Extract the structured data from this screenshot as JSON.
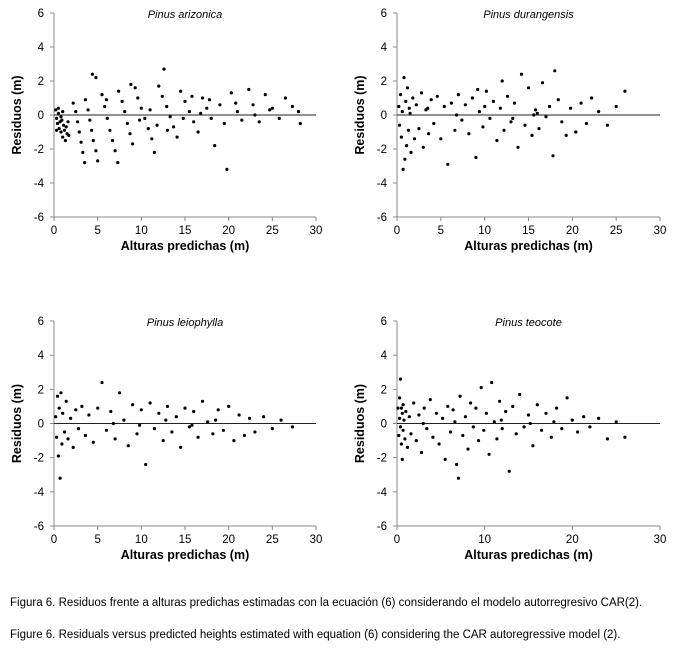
{
  "chart_data": [
    {
      "type": "scatter",
      "title": "Pinus arizonica",
      "xlabel": "Alturas predichas (m)",
      "ylabel": "Residuos (m)",
      "xlim": [
        0,
        30
      ],
      "ylim": [
        -6,
        6
      ],
      "xticks": [
        "0",
        "5",
        "10",
        "15",
        "20",
        "25",
        "30"
      ],
      "yticks": [
        "6",
        "4",
        "2",
        "0",
        "-2",
        "-4",
        "-6"
      ],
      "reference_line_y": 0,
      "grid": false,
      "points": [
        [
          0.2,
          0.3
        ],
        [
          0.3,
          -0.2
        ],
        [
          0.4,
          -0.5
        ],
        [
          0.5,
          0.1
        ],
        [
          0.6,
          -0.8
        ],
        [
          0.7,
          -0.4
        ],
        [
          0.8,
          -1.0
        ],
        [
          0.9,
          -0.3
        ],
        [
          1.0,
          -1.3
        ],
        [
          1.1,
          -0.6
        ],
        [
          1.2,
          -0.9
        ],
        [
          1.3,
          -1.5
        ],
        [
          1.4,
          -0.7
        ],
        [
          1.5,
          -1.1
        ],
        [
          1.6,
          -0.4
        ],
        [
          1.7,
          -1.2
        ],
        [
          0.5,
          0.4
        ],
        [
          0.3,
          -0.9
        ],
        [
          1.0,
          0.2
        ],
        [
          0.8,
          -0.1
        ],
        [
          2.2,
          0.7
        ],
        [
          2.5,
          0.2
        ],
        [
          2.7,
          -0.4
        ],
        [
          2.9,
          -1.0
        ],
        [
          3.1,
          -1.6
        ],
        [
          3.3,
          -2.2
        ],
        [
          3.5,
          -2.8
        ],
        [
          3.6,
          0.9
        ],
        [
          3.9,
          0.3
        ],
        [
          4.1,
          -0.3
        ],
        [
          4.3,
          -0.9
        ],
        [
          4.5,
          -1.5
        ],
        [
          4.8,
          -2.1
        ],
        [
          5.0,
          -2.7
        ],
        [
          4.4,
          2.4
        ],
        [
          4.8,
          2.2
        ],
        [
          5.5,
          1.2
        ],
        [
          5.8,
          0.5
        ],
        [
          6.1,
          -0.2
        ],
        [
          6.4,
          -0.9
        ],
        [
          6.7,
          -1.5
        ],
        [
          7.0,
          -2.1
        ],
        [
          7.3,
          -2.8
        ],
        [
          7.4,
          1.4
        ],
        [
          7.8,
          0.8
        ],
        [
          8.1,
          0.2
        ],
        [
          8.4,
          -0.5
        ],
        [
          8.7,
          -1.1
        ],
        [
          9.0,
          -1.7
        ],
        [
          8.8,
          1.8
        ],
        [
          9.3,
          1.6
        ],
        [
          9.6,
          1.0
        ],
        [
          10.0,
          0.4
        ],
        [
          10.4,
          -0.2
        ],
        [
          10.8,
          -0.8
        ],
        [
          11.2,
          -1.4
        ],
        [
          11.5,
          -2.2
        ],
        [
          12.6,
          2.7
        ],
        [
          12.0,
          1.7
        ],
        [
          12.4,
          1.1
        ],
        [
          12.9,
          0.5
        ],
        [
          13.3,
          -0.1
        ],
        [
          13.7,
          -0.7
        ],
        [
          14.1,
          -1.3
        ],
        [
          14.5,
          1.4
        ],
        [
          15.0,
          0.8
        ],
        [
          15.5,
          0.2
        ],
        [
          16.0,
          -0.4
        ],
        [
          16.5,
          -1.0
        ],
        [
          17.0,
          1.0
        ],
        [
          17.5,
          0.4
        ],
        [
          18.0,
          -0.2
        ],
        [
          18.4,
          -1.8
        ],
        [
          19.0,
          0.6
        ],
        [
          19.5,
          -0.5
        ],
        [
          19.8,
          -3.2
        ],
        [
          20.3,
          1.3
        ],
        [
          21.0,
          0.2
        ],
        [
          21.5,
          -0.3
        ],
        [
          22.3,
          1.5
        ],
        [
          22.8,
          0.6
        ],
        [
          23.5,
          -0.4
        ],
        [
          24.2,
          1.2
        ],
        [
          25.0,
          0.4
        ],
        [
          25.8,
          -0.2
        ],
        [
          26.5,
          1.0
        ],
        [
          27.3,
          0.5
        ],
        [
          28.2,
          -0.5
        ],
        [
          28.0,
          0.2
        ],
        [
          6.0,
          0.9
        ],
        [
          11.0,
          0.3
        ],
        [
          13.0,
          -0.9
        ],
        [
          15.8,
          1.1
        ],
        [
          16.8,
          0.1
        ],
        [
          20.8,
          0.7
        ],
        [
          23.0,
          0.0
        ],
        [
          24.7,
          0.3
        ],
        [
          9.8,
          -0.3
        ],
        [
          11.8,
          -0.6
        ],
        [
          14.8,
          -0.2
        ],
        [
          17.8,
          0.9
        ]
      ]
    },
    {
      "type": "scatter",
      "title": "Pinus durangensis",
      "xlabel": "Alturas predichas (m)",
      "ylabel": "Residuos (m)",
      "xlim": [
        0,
        30
      ],
      "ylim": [
        -6,
        6
      ],
      "xticks": [
        "0",
        "5",
        "10",
        "15",
        "20",
        "25",
        "30"
      ],
      "yticks": [
        "6",
        "4",
        "2",
        "0",
        "-2",
        "-4",
        "-6"
      ],
      "reference_line_y": 0,
      "grid": false,
      "points": [
        [
          0.2,
          0.5
        ],
        [
          0.3,
          -0.6
        ],
        [
          0.4,
          1.2
        ],
        [
          0.5,
          -1.3
        ],
        [
          0.6,
          0.2
        ],
        [
          0.7,
          -3.2
        ],
        [
          0.8,
          2.2
        ],
        [
          0.9,
          -2.6
        ],
        [
          1.0,
          0.8
        ],
        [
          1.1,
          -1.8
        ],
        [
          1.2,
          1.6
        ],
        [
          1.3,
          -0.9
        ],
        [
          1.4,
          0.4
        ],
        [
          1.6,
          -2.2
        ],
        [
          1.8,
          1.0
        ],
        [
          2.0,
          -1.4
        ],
        [
          2.2,
          0.6
        ],
        [
          2.5,
          -0.8
        ],
        [
          2.8,
          1.3
        ],
        [
          3.0,
          -1.9
        ],
        [
          3.3,
          0.3
        ],
        [
          3.6,
          -1.1
        ],
        [
          3.9,
          0.9
        ],
        [
          4.2,
          -0.5
        ],
        [
          4.6,
          1.1
        ],
        [
          5.0,
          -1.4
        ],
        [
          5.4,
          0.5
        ],
        [
          5.8,
          -2.9
        ],
        [
          6.2,
          0.7
        ],
        [
          6.6,
          -0.9
        ],
        [
          7.0,
          1.2
        ],
        [
          7.4,
          -0.3
        ],
        [
          7.8,
          0.6
        ],
        [
          8.2,
          -1.1
        ],
        [
          8.6,
          1.0
        ],
        [
          9.0,
          -2.5
        ],
        [
          9.4,
          0.2
        ],
        [
          9.8,
          -0.7
        ],
        [
          10.2,
          1.4
        ],
        [
          10.6,
          -0.2
        ],
        [
          11.0,
          0.8
        ],
        [
          11.4,
          -1.5
        ],
        [
          11.8,
          0.4
        ],
        [
          12.2,
          -0.9
        ],
        [
          12.6,
          1.1
        ],
        [
          13.0,
          -0.4
        ],
        [
          13.4,
          0.7
        ],
        [
          13.8,
          -1.9
        ],
        [
          14.2,
          2.4
        ],
        [
          14.6,
          -0.6
        ],
        [
          15.0,
          1.6
        ],
        [
          15.4,
          -1.2
        ],
        [
          15.8,
          0.3
        ],
        [
          16.2,
          -0.8
        ],
        [
          16.6,
          1.9
        ],
        [
          17.0,
          -0.1
        ],
        [
          17.4,
          0.5
        ],
        [
          17.8,
          -2.4
        ],
        [
          18.0,
          2.6
        ],
        [
          18.4,
          0.9
        ],
        [
          18.8,
          -0.4
        ],
        [
          19.3,
          -1.2
        ],
        [
          19.8,
          0.4
        ],
        [
          20.4,
          -1.0
        ],
        [
          21.0,
          0.7
        ],
        [
          21.6,
          -0.5
        ],
        [
          22.2,
          1.0
        ],
        [
          23.0,
          0.2
        ],
        [
          24.0,
          -0.6
        ],
        [
          25.0,
          0.5
        ],
        [
          26.0,
          1.4
        ],
        [
          6.8,
          0.0
        ],
        [
          10.0,
          0.5
        ],
        [
          13.2,
          -0.2
        ],
        [
          16.0,
          0.1
        ],
        [
          1.5,
          0.1
        ],
        [
          3.5,
          0.4
        ],
        [
          9.2,
          1.5
        ],
        [
          12.0,
          2.0
        ],
        [
          15.6,
          0.0
        ]
      ]
    },
    {
      "type": "scatter",
      "title": "Pinus leiophylla",
      "xlabel": "Alturas predichas (m)",
      "ylabel": "Residuos (m)",
      "xlim": [
        0,
        30
      ],
      "ylim": [
        -6,
        6
      ],
      "xticks": [
        "0",
        "5",
        "10",
        "15",
        "20",
        "25",
        "30"
      ],
      "yticks": [
        "6",
        "4",
        "2",
        "0",
        "-2",
        "-4",
        "-6"
      ],
      "reference_line_y": 0,
      "grid": false,
      "points": [
        [
          0.2,
          0.4
        ],
        [
          0.3,
          -0.8
        ],
        [
          0.4,
          1.6
        ],
        [
          0.5,
          -1.9
        ],
        [
          0.6,
          0.9
        ],
        [
          0.7,
          -3.2
        ],
        [
          0.8,
          1.8
        ],
        [
          0.9,
          -1.2
        ],
        [
          1.0,
          0.6
        ],
        [
          1.2,
          -0.5
        ],
        [
          1.4,
          1.3
        ],
        [
          1.6,
          -0.9
        ],
        [
          1.9,
          0.3
        ],
        [
          2.2,
          -1.4
        ],
        [
          2.5,
          0.8
        ],
        [
          2.8,
          -0.3
        ],
        [
          3.2,
          1.0
        ],
        [
          3.6,
          -0.7
        ],
        [
          4.0,
          0.5
        ],
        [
          4.5,
          -1.1
        ],
        [
          5.0,
          0.9
        ],
        [
          5.5,
          2.4
        ],
        [
          6.0,
          -0.4
        ],
        [
          6.5,
          0.7
        ],
        [
          7.0,
          -0.9
        ],
        [
          7.5,
          1.8
        ],
        [
          8.0,
          0.2
        ],
        [
          8.5,
          -1.3
        ],
        [
          9.0,
          1.1
        ],
        [
          9.5,
          -0.6
        ],
        [
          10.0,
          0.8
        ],
        [
          10.5,
          -2.4
        ],
        [
          11.0,
          1.2
        ],
        [
          11.5,
          -0.3
        ],
        [
          12.0,
          0.6
        ],
        [
          12.5,
          -1.0
        ],
        [
          13.0,
          1.0
        ],
        [
          13.5,
          -0.5
        ],
        [
          14.0,
          0.4
        ],
        [
          14.5,
          -1.4
        ],
        [
          15.0,
          0.9
        ],
        [
          15.5,
          -0.2
        ],
        [
          16.0,
          0.7
        ],
        [
          16.5,
          -0.8
        ],
        [
          17.0,
          1.3
        ],
        [
          17.6,
          0.1
        ],
        [
          18.2,
          -0.6
        ],
        [
          18.8,
          0.8
        ],
        [
          19.4,
          -0.4
        ],
        [
          20.0,
          1.0
        ],
        [
          20.6,
          -1.0
        ],
        [
          21.2,
          0.5
        ],
        [
          21.8,
          -0.7
        ],
        [
          22.4,
          0.3
        ],
        [
          23.0,
          -0.5
        ],
        [
          24.0,
          0.4
        ],
        [
          25.0,
          -0.3
        ],
        [
          26.0,
          0.2
        ],
        [
          27.3,
          -0.2
        ],
        [
          6.8,
          0.0
        ],
        [
          9.8,
          -0.1
        ],
        [
          12.8,
          0.2
        ],
        [
          15.8,
          -0.1
        ],
        [
          18.5,
          0.2
        ]
      ]
    },
    {
      "type": "scatter",
      "title": "Pinus teocote",
      "xlabel": "Alturas predichas (m)",
      "ylabel": "Residuos (m)",
      "xlim": [
        0,
        30
      ],
      "ylim": [
        -6,
        6
      ],
      "xticks": [
        "0",
        "10",
        "20",
        "30"
      ],
      "yticks": [
        "6",
        "4",
        "2",
        "0",
        "-2",
        "-4",
        "-6"
      ],
      "reference_line_y": 0,
      "grid": false,
      "points": [
        [
          0.1,
          0.9
        ],
        [
          0.2,
          -0.7
        ],
        [
          0.3,
          1.5
        ],
        [
          0.3,
          0.3
        ],
        [
          0.4,
          2.6
        ],
        [
          0.4,
          -0.2
        ],
        [
          0.5,
          0.9
        ],
        [
          0.5,
          -1.2
        ],
        [
          0.6,
          0.6
        ],
        [
          0.6,
          -2.1
        ],
        [
          0.7,
          1.1
        ],
        [
          0.7,
          -0.4
        ],
        [
          0.8,
          0.2
        ],
        [
          0.9,
          -0.9
        ],
        [
          1.0,
          0.7
        ],
        [
          1.2,
          -1.4
        ],
        [
          1.4,
          0.4
        ],
        [
          1.6,
          -0.6
        ],
        [
          1.9,
          1.2
        ],
        [
          2.2,
          -1.0
        ],
        [
          2.5,
          0.5
        ],
        [
          2.8,
          -1.7
        ],
        [
          3.1,
          0.9
        ],
        [
          3.4,
          -0.3
        ],
        [
          3.8,
          1.4
        ],
        [
          4.1,
          -0.8
        ],
        [
          4.5,
          0.6
        ],
        [
          4.8,
          -1.2
        ],
        [
          5.2,
          0.3
        ],
        [
          5.5,
          -2.1
        ],
        [
          5.8,
          1.0
        ],
        [
          6.1,
          -0.5
        ],
        [
          6.4,
          0.8
        ],
        [
          6.8,
          -2.4
        ],
        [
          7.0,
          -3.2
        ],
        [
          7.2,
          1.6
        ],
        [
          7.5,
          -0.7
        ],
        [
          7.8,
          0.4
        ],
        [
          8.1,
          -1.5
        ],
        [
          8.4,
          1.2
        ],
        [
          8.7,
          -0.2
        ],
        [
          9.0,
          0.9
        ],
        [
          9.3,
          -1.0
        ],
        [
          9.6,
          2.1
        ],
        [
          9.9,
          -0.4
        ],
        [
          10.2,
          0.6
        ],
        [
          10.5,
          -1.8
        ],
        [
          10.8,
          2.4
        ],
        [
          11.1,
          0.1
        ],
        [
          11.4,
          -0.9
        ],
        [
          11.7,
          1.3
        ],
        [
          12.0,
          -0.3
        ],
        [
          12.4,
          0.7
        ],
        [
          12.8,
          -2.8
        ],
        [
          13.2,
          1.0
        ],
        [
          13.6,
          -0.6
        ],
        [
          14.0,
          1.7
        ],
        [
          14.5,
          -0.2
        ],
        [
          15.0,
          0.5
        ],
        [
          15.5,
          -1.3
        ],
        [
          16.0,
          1.1
        ],
        [
          16.5,
          -0.4
        ],
        [
          17.0,
          0.6
        ],
        [
          17.6,
          -0.8
        ],
        [
          18.2,
          0.9
        ],
        [
          18.8,
          -0.3
        ],
        [
          19.4,
          1.5
        ],
        [
          20.0,
          0.2
        ],
        [
          20.6,
          -0.5
        ],
        [
          21.3,
          0.4
        ],
        [
          22.0,
          -0.2
        ],
        [
          23.0,
          0.3
        ],
        [
          24.0,
          -0.9
        ],
        [
          25.0,
          0.1
        ],
        [
          26.0,
          -0.8
        ],
        [
          3.0,
          0.0
        ],
        [
          6.6,
          0.1
        ],
        [
          11.9,
          0.2
        ],
        [
          15.2,
          0.0
        ],
        [
          17.9,
          0.1
        ]
      ]
    }
  ],
  "caption": {
    "spanish": "Figura 6. Residuos frente a alturas predichas estimadas con la ecuación (6) considerando el modelo autorregresivo CAR(2).",
    "english": "Figure 6. Residuals versus predicted heights estimated with equation (6) considering the CAR autoregressive model (2)."
  }
}
